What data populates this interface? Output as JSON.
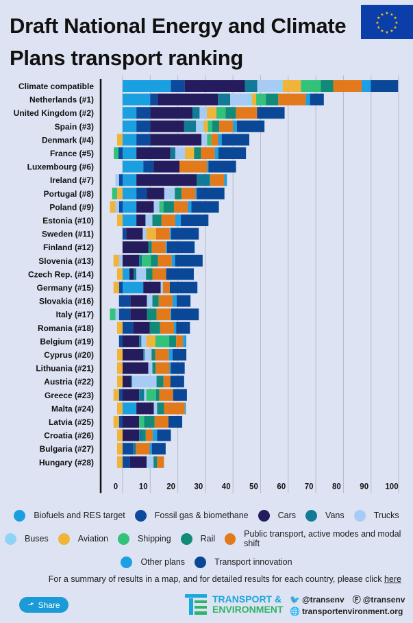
{
  "header": {
    "title": "Draft National Energy and Climate Plans transport ranking",
    "flag_icon": "eu-flag-icon"
  },
  "chart_data": {
    "type": "bar",
    "orientation": "horizontal-stacked",
    "title": "Draft National Energy and Climate Plans transport ranking",
    "xlabel": "",
    "ylabel": "",
    "xlim": [
      -5,
      100
    ],
    "xticks": [
      0,
      10,
      20,
      30,
      40,
      50,
      60,
      70,
      80,
      90,
      100
    ],
    "grid": true,
    "legend_position": "bottom",
    "series": [
      {
        "name": "Biofuels and RES target",
        "color": "#1a9fe0"
      },
      {
        "name": "Fossil gas & biomethane",
        "color": "#0d4a9c"
      },
      {
        "name": "Cars",
        "color": "#241c5c"
      },
      {
        "name": "Vans",
        "color": "#127a96"
      },
      {
        "name": "Trucks",
        "color": "#a7cbf4"
      },
      {
        "name": "Buses",
        "color": "#8fd4f5"
      },
      {
        "name": "Aviation",
        "color": "#f0b43a"
      },
      {
        "name": "Shipping",
        "color": "#33c27a"
      },
      {
        "name": "Rail",
        "color": "#128a78"
      },
      {
        "name": "Public transport, active modes and modal shift",
        "color": "#e27a1c"
      },
      {
        "name": "Other plans",
        "color": "#1d9fe3"
      },
      {
        "name": "Transport innovation",
        "color": "#0a4897"
      }
    ],
    "categories": [
      "Climate compatible",
      "Netherlands (#1)",
      "United Kingdom (#2)",
      "Spain (#3)",
      "Denmark (#4)",
      "France (#5)",
      "Luxembourg (#6)",
      "Ireland (#7)",
      "Portugal (#8)",
      "Poland (#9)",
      "Estonia (#10)",
      "Sweden (#11)",
      "Finland (#12)",
      "Slovenia (#13)",
      "Czech Rep. (#14)",
      "Germany (#15)",
      "Slovakia (#16)",
      "Italy (#17)",
      "Romania (#18)",
      "Belgium (#19)",
      "Cyprus (#20)",
      "Lithuania (#21)",
      "Austria (#22)",
      "Greece (#23)",
      "Malta (#24)",
      "Latvia (#25)",
      "Croatia (#26)",
      "Bulgaria (#27)",
      "Hungary (#28)"
    ],
    "positive": [
      [
        17.5,
        5,
        21.8,
        4.5,
        7.7,
        1.5,
        6.6,
        7.2,
        4.5,
        10.3,
        3.3,
        9.9
      ],
      [
        10,
        2.7,
        21.8,
        4.5,
        6.3,
        1.5,
        1.6,
        3.5,
        4.5,
        10,
        1.5,
        5
      ],
      [
        5,
        5,
        15.3,
        2.6,
        2.6,
        0,
        3.5,
        3.3,
        3.8,
        7.6,
        0,
        10
      ],
      [
        5,
        5,
        12.3,
        4.3,
        2.2,
        0.6,
        1.5,
        1.6,
        2.5,
        5,
        1.4,
        10
      ],
      [
        5,
        5,
        18.6,
        0,
        2,
        0,
        0,
        1.5,
        0,
        2.5,
        1.3,
        10
      ],
      [
        5,
        0,
        12.3,
        1.8,
        3.5,
        0,
        3.3,
        0,
        2.5,
        5,
        1.3,
        10
      ],
      [
        7.5,
        3.8,
        9.3,
        0,
        0,
        0,
        0,
        0,
        0,
        10,
        0.5,
        10
      ],
      [
        5,
        0,
        21.8,
        4.5,
        0,
        0,
        0,
        0,
        0.5,
        5,
        1,
        0
      ],
      [
        5,
        3.8,
        6.3,
        0,
        3.8,
        0,
        0,
        0,
        2.5,
        5,
        0.5,
        10
      ],
      [
        5,
        0,
        6.3,
        0,
        2,
        0,
        0,
        1.5,
        3.8,
        5,
        1.3,
        10
      ],
      [
        5,
        0,
        3.3,
        0,
        2.5,
        0,
        0,
        0,
        3.3,
        5,
        2,
        10
      ],
      [
        0,
        1.3,
        6,
        0,
        1.3,
        0,
        3.5,
        0,
        0,
        5,
        0.5,
        10
      ],
      [
        0,
        0,
        9.3,
        0,
        0,
        0,
        0,
        0,
        1.3,
        5,
        0.5,
        10
      ],
      [
        0,
        0,
        6,
        1,
        0,
        0,
        0,
        3.3,
        2.5,
        5,
        1.2,
        10
      ],
      [
        2.5,
        0,
        1.5,
        1,
        3.5,
        0,
        0,
        0,
        2.3,
        5,
        0,
        10
      ],
      [
        7.5,
        0,
        6.3,
        0,
        0.8,
        0,
        0,
        0,
        0,
        2.5,
        0,
        10
      ],
      [
        0,
        2.8,
        6,
        0,
        2,
        0,
        0,
        0,
        2.3,
        5,
        1.5,
        5
      ],
      [
        0,
        2.8,
        6,
        0,
        0,
        0,
        0,
        0,
        3.5,
        5,
        0.3,
        10
      ],
      [
        0,
        3.8,
        6,
        0,
        0,
        0,
        0,
        0,
        3.8,
        5,
        0.8,
        5
      ],
      [
        0,
        0,
        6,
        0.8,
        1.8,
        0,
        3.3,
        5,
        2.5,
        2.5,
        1.2,
        0
      ],
      [
        0,
        0,
        7.5,
        0.5,
        2.5,
        0,
        0,
        0,
        1.3,
        5,
        1.3,
        5
      ],
      [
        0,
        0,
        9.3,
        0,
        1.5,
        0,
        0,
        0,
        1.2,
        5,
        0.5,
        5
      ],
      [
        0,
        0,
        3,
        0.5,
        8.8,
        0,
        0,
        0,
        2.5,
        2.5,
        0,
        5
      ],
      [
        0,
        0,
        6,
        1.8,
        0.8,
        0,
        0,
        3.5,
        1.2,
        5,
        0,
        5
      ],
      [
        5,
        0,
        6.3,
        0,
        1.2,
        0,
        0,
        0,
        2.5,
        7.5,
        0.4,
        0
      ],
      [
        0,
        0,
        6,
        0,
        0,
        0,
        0,
        1.8,
        3.8,
        5,
        0,
        5
      ],
      [
        0,
        0,
        6,
        1.2,
        0,
        0,
        0,
        0,
        1.2,
        2.5,
        1.6,
        5
      ],
      [
        0,
        3.8,
        0,
        1,
        0,
        0,
        0,
        0,
        0,
        5,
        0.8,
        5
      ],
      [
        0,
        2.7,
        6,
        0,
        2.5,
        0,
        0,
        0,
        1.3,
        2.5,
        0,
        0
      ]
    ],
    "negative": [
      [
        0,
        0,
        0,
        0,
        0,
        0,
        0,
        0,
        0,
        0,
        0,
        0
      ],
      [
        0,
        0,
        0,
        0,
        0,
        0,
        0,
        0,
        0,
        0,
        0,
        0
      ],
      [
        0,
        0,
        0,
        0,
        0,
        0,
        0,
        0,
        0,
        0,
        0,
        0
      ],
      [
        0,
        0,
        0,
        0,
        0,
        0,
        0,
        0,
        0,
        0,
        0,
        0
      ],
      [
        0,
        0,
        0,
        0,
        0,
        0,
        2,
        0,
        0,
        0,
        0,
        0
      ],
      [
        0,
        1.5,
        0,
        0,
        0,
        0,
        0,
        1.7,
        0,
        0,
        0,
        0
      ],
      [
        0,
        0,
        0,
        0,
        0,
        0,
        0,
        0,
        0,
        0,
        0,
        0
      ],
      [
        0,
        1.3,
        0,
        0,
        1.3,
        0,
        0,
        0,
        0,
        0,
        0,
        0
      ],
      [
        0,
        0,
        0,
        0,
        0,
        0,
        2,
        1.8,
        0,
        0,
        0,
        0
      ],
      [
        0,
        1.3,
        0,
        0,
        1.3,
        0,
        2,
        0,
        0,
        0,
        0,
        0
      ],
      [
        0,
        0,
        0,
        0,
        0,
        0,
        2,
        0,
        0,
        0,
        0,
        0
      ],
      [
        0,
        0,
        0,
        0,
        0,
        0,
        0,
        0,
        0,
        0,
        0,
        0
      ],
      [
        0,
        0,
        0,
        0,
        0,
        0,
        0,
        0,
        0,
        0,
        0,
        0
      ],
      [
        0,
        0,
        0,
        0,
        1.3,
        0,
        2,
        0,
        0,
        0,
        0,
        0
      ],
      [
        0,
        0,
        0,
        0,
        0,
        0,
        2,
        0,
        0,
        0,
        0,
        0
      ],
      [
        0,
        1.3,
        0,
        0,
        0,
        0,
        2,
        0,
        0,
        0,
        0,
        0
      ],
      [
        0,
        1.3,
        0,
        0,
        0,
        0,
        0,
        0,
        0,
        0,
        0,
        0
      ],
      [
        0,
        1.3,
        0,
        0,
        1.3,
        0,
        0,
        2,
        0,
        0,
        0,
        0
      ],
      [
        0,
        0,
        0,
        0,
        0,
        0,
        2,
        0,
        0,
        0,
        0,
        0
      ],
      [
        0,
        1.3,
        0,
        0,
        0,
        0,
        0,
        0,
        0,
        0,
        0,
        0
      ],
      [
        0,
        0,
        0,
        0,
        0,
        0,
        2,
        0,
        0,
        0,
        0,
        0
      ],
      [
        0,
        0,
        0,
        0,
        0,
        0,
        2,
        0,
        0,
        0,
        0,
        0
      ],
      [
        0,
        0,
        0,
        0,
        0,
        0,
        2,
        0,
        0,
        0,
        0,
        0
      ],
      [
        0,
        1.3,
        0,
        0,
        0,
        0,
        2,
        0,
        0,
        0,
        0,
        0
      ],
      [
        0,
        0,
        0,
        0,
        0,
        0,
        2,
        0,
        0,
        0,
        0,
        0
      ],
      [
        0,
        1.3,
        0,
        0,
        0,
        0,
        2,
        0,
        0,
        0,
        0,
        0
      ],
      [
        0,
        0,
        0,
        0,
        0,
        0,
        2,
        0,
        0,
        0,
        0,
        0
      ],
      [
        0,
        0,
        0,
        0,
        0,
        0,
        2,
        0,
        0,
        0,
        0,
        0
      ],
      [
        0,
        0,
        0,
        0,
        0,
        0,
        2,
        0,
        0,
        0,
        0,
        0
      ]
    ]
  },
  "legend": {
    "rows": [
      [
        0,
        1,
        2,
        3,
        4
      ],
      [
        5,
        6,
        7,
        8,
        9
      ],
      [
        10,
        11
      ]
    ]
  },
  "footer": {
    "note_text": "For a summary of results in a map, and for detailed results for each country, please click ",
    "note_link": "here",
    "share_label": "Share",
    "logo_line1": "TRANSPORT &",
    "logo_line2": "ENVIRONMENT",
    "twitter": "@transenv",
    "facebook": "@transenv",
    "website": "transportenvironment.org"
  }
}
